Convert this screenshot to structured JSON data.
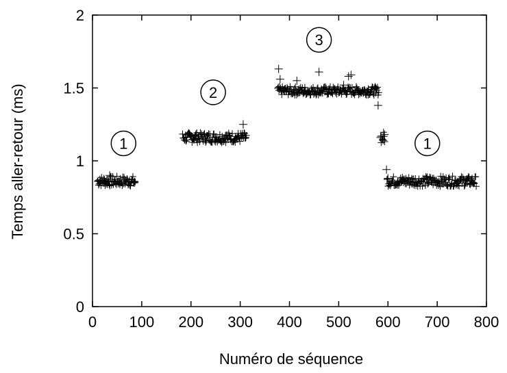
{
  "chart_data": {
    "type": "scatter",
    "title": "",
    "xlabel": "Numéro de séquence",
    "ylabel": "Temps aller-retour (ms)",
    "xlim": [
      0,
      800
    ],
    "ylim": [
      0,
      2
    ],
    "xticks": [
      "0",
      "100",
      "200",
      "300",
      "400",
      "500",
      "600",
      "700",
      "800"
    ],
    "yticks": [
      "0",
      "0.5",
      "1",
      "1.5",
      "2"
    ],
    "grid": false,
    "marker": "+",
    "series": [
      {
        "points": [
          {
            "x": 15,
            "y": 0.87
          },
          {
            "x": 25,
            "y": 0.85
          },
          {
            "x": 35,
            "y": 0.9
          },
          {
            "x": 45,
            "y": 0.86
          },
          {
            "x": 55,
            "y": 0.85
          },
          {
            "x": 65,
            "y": 0.87
          },
          {
            "x": 75,
            "y": 0.86
          },
          {
            "x": 85,
            "y": 0.85
          },
          {
            "x": 190,
            "y": 1.16
          },
          {
            "x": 210,
            "y": 1.18
          },
          {
            "x": 230,
            "y": 1.15
          },
          {
            "x": 250,
            "y": 1.16
          },
          {
            "x": 270,
            "y": 1.17
          },
          {
            "x": 290,
            "y": 1.15
          },
          {
            "x": 306,
            "y": 1.25
          },
          {
            "x": 310,
            "y": 1.16
          },
          {
            "x": 378,
            "y": 1.63
          },
          {
            "x": 381,
            "y": 1.56
          },
          {
            "x": 390,
            "y": 1.48
          },
          {
            "x": 410,
            "y": 1.49
          },
          {
            "x": 415,
            "y": 1.55
          },
          {
            "x": 430,
            "y": 1.47
          },
          {
            "x": 450,
            "y": 1.48
          },
          {
            "x": 460,
            "y": 1.61
          },
          {
            "x": 480,
            "y": 1.49
          },
          {
            "x": 500,
            "y": 1.47
          },
          {
            "x": 510,
            "y": 1.52
          },
          {
            "x": 520,
            "y": 1.58
          },
          {
            "x": 525,
            "y": 1.59
          },
          {
            "x": 540,
            "y": 1.48
          },
          {
            "x": 560,
            "y": 1.49
          },
          {
            "x": 575,
            "y": 1.47
          },
          {
            "x": 580,
            "y": 1.38
          },
          {
            "x": 585,
            "y": 1.16
          },
          {
            "x": 590,
            "y": 1.14
          },
          {
            "x": 593,
            "y": 1.18
          },
          {
            "x": 597,
            "y": 0.94
          },
          {
            "x": 600,
            "y": 0.88
          },
          {
            "x": 620,
            "y": 0.86
          },
          {
            "x": 650,
            "y": 0.85
          },
          {
            "x": 680,
            "y": 0.87
          },
          {
            "x": 710,
            "y": 0.86
          },
          {
            "x": 740,
            "y": 0.85
          },
          {
            "x": 770,
            "y": 0.86
          }
        ]
      }
    ],
    "clusters": [
      {
        "x_start": 10,
        "x_end": 88,
        "y": 0.86,
        "spread": 0.035
      },
      {
        "x_start": 183,
        "x_end": 313,
        "y": 1.16,
        "spread": 0.035
      },
      {
        "x_start": 376,
        "x_end": 582,
        "y": 1.48,
        "spread": 0.03
      },
      {
        "x_start": 585,
        "x_end": 594,
        "y": 1.16,
        "spread": 0.04
      },
      {
        "x_start": 598,
        "x_end": 780,
        "y": 0.86,
        "spread": 0.035
      }
    ],
    "annotations": [
      {
        "text": "1",
        "x": 63,
        "y": 1.12
      },
      {
        "text": "2",
        "x": 245,
        "y": 1.47
      },
      {
        "text": "3",
        "x": 460,
        "y": 1.83
      },
      {
        "text": "1",
        "x": 680,
        "y": 1.12
      }
    ]
  }
}
